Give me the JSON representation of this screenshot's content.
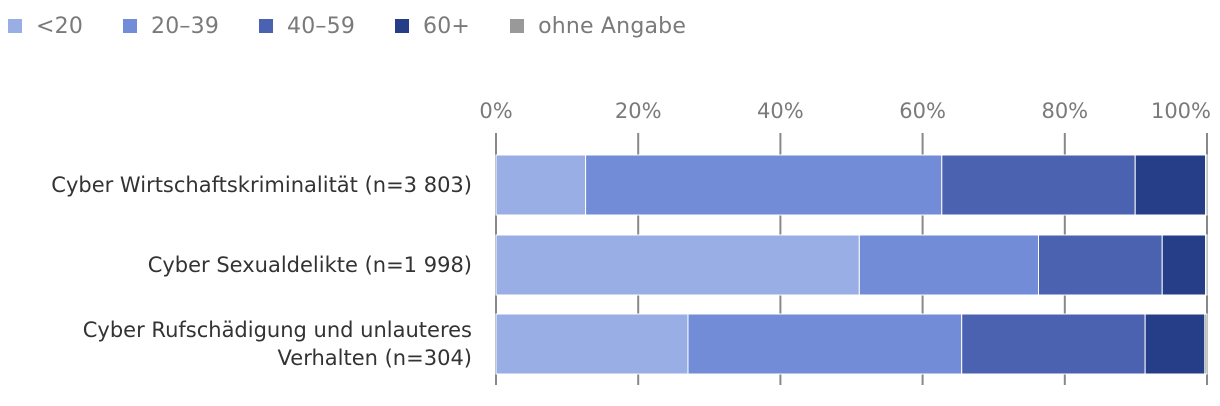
{
  "legend": [
    {
      "label": "<20",
      "color": "#9aaee6"
    },
    {
      "label": "20–39",
      "color": "#738cd8"
    },
    {
      "label": "40–59",
      "color": "#4a62b0"
    },
    {
      "label": "60+",
      "color": "#263d88"
    },
    {
      "label": "ohne Angabe",
      "color": "#999999"
    }
  ],
  "chart_data": {
    "type": "bar",
    "orientation": "horizontal",
    "stacked": true,
    "categories": [
      [
        "Cyber Wirtschaftskriminalität (n=3 803)"
      ],
      [
        "Cyber Sexualdelikte (n=1 998)"
      ],
      [
        "Cyber Rufschädigung und unlauteres",
        "Verhalten (n=304)"
      ]
    ],
    "series": [
      {
        "name": "<20",
        "color": "#9aaee6",
        "values": [
          12.6,
          51.1,
          27.0
        ]
      },
      {
        "name": "20–39",
        "color": "#738cd8",
        "values": [
          50.1,
          25.2,
          38.5
        ]
      },
      {
        "name": "40–59",
        "color": "#4a62b0",
        "values": [
          27.2,
          17.4,
          25.8
        ]
      },
      {
        "name": "60+",
        "color": "#263d88",
        "values": [
          9.9,
          6.1,
          8.4
        ]
      },
      {
        "name": "ohne Angabe",
        "color": "#999999",
        "values": [
          0.2,
          0.2,
          0.3
        ]
      }
    ],
    "xlim": [
      0,
      100
    ],
    "xticks": [
      "0%",
      "20%",
      "40%",
      "60%",
      "80%",
      "100%"
    ],
    "gridlines": true,
    "legend_position": "top-left"
  }
}
